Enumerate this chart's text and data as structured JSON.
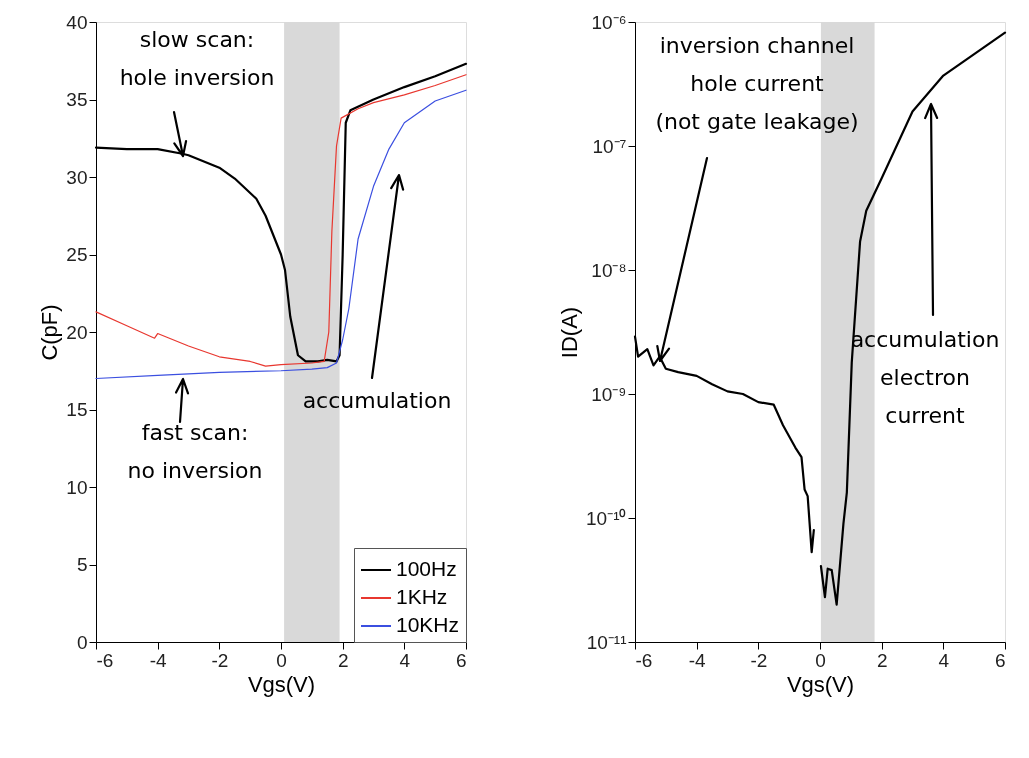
{
  "chart_data": [
    {
      "type": "line",
      "xlabel": "Vgs(V)",
      "ylabel": "C(pF)",
      "xlim": [
        -6,
        6
      ],
      "ylim": [
        0,
        40
      ],
      "xticks": [
        -6,
        -4,
        -2,
        0,
        2,
        4,
        6
      ],
      "yticks": [
        0,
        5,
        10,
        15,
        20,
        25,
        30,
        35,
        40
      ],
      "grid": false,
      "legend": "bottom right",
      "bands": [
        {
          "axis": "x",
          "from": 0.1,
          "to": 1.9,
          "color": "#d9d9d9"
        }
      ],
      "annotations": [
        "slow scan:\nhole inversion",
        "fast scan:\nno inversion",
        "accumulation"
      ],
      "series": [
        {
          "name": "100Hz",
          "color": "#000000",
          "x": [
            -6,
            -5,
            -4,
            -3.2,
            -3,
            -2,
            -1.5,
            -0.8,
            -0.5,
            -0.2,
            0,
            0.13,
            0.3,
            0.55,
            0.8,
            1.2,
            1.5,
            1.8,
            1.9,
            2.0,
            2.1,
            2.25,
            3,
            4,
            5,
            6
          ],
          "values": [
            31.9,
            31.8,
            31.8,
            31.5,
            31.4,
            30.6,
            29.9,
            28.6,
            27.5,
            26,
            25,
            24,
            21,
            18.5,
            18.1,
            18.1,
            18.2,
            18.1,
            18.5,
            25,
            33.5,
            34.3,
            35,
            35.8,
            36.5,
            37.3
          ]
        },
        {
          "name": "1KHz",
          "color": "#e8372f",
          "x": [
            -6,
            -5,
            -4.1,
            -4,
            -3,
            -2,
            -1,
            -0.5,
            0,
            1,
            1.4,
            1.55,
            1.65,
            1.8,
            1.95,
            2.5,
            3,
            4,
            5,
            6
          ],
          "values": [
            21.3,
            20.4,
            19.6,
            19.9,
            19.1,
            18.4,
            18.1,
            17.8,
            17.9,
            18.0,
            18.1,
            20,
            26.5,
            32,
            33.8,
            34.4,
            34.8,
            35.3,
            35.9,
            36.6
          ]
        },
        {
          "name": "10KHz",
          "color": "#3b4fe0",
          "x": [
            -6,
            -4,
            -2,
            0,
            1,
            1.5,
            1.8,
            2,
            2.2,
            2.5,
            3,
            3.5,
            4,
            5,
            6
          ],
          "values": [
            17.0,
            17.2,
            17.4,
            17.5,
            17.6,
            17.7,
            18.0,
            19.5,
            21.5,
            26,
            29.4,
            31.8,
            33.5,
            34.9,
            35.6
          ]
        }
      ]
    },
    {
      "type": "line",
      "xlabel": "Vgs(V)",
      "ylabel": "ID(A)",
      "log": true,
      "xlim": [
        -6,
        6
      ],
      "ylim": [
        1e-11,
        1e-06
      ],
      "xticks": [
        -6,
        -4,
        -2,
        0,
        2,
        4,
        6
      ],
      "yticks": [
        {
          "value": 1e-11,
          "label": "10⁻¹¹"
        },
        {
          "value": 1e-10,
          "label": "10⁻¹⁰"
        },
        {
          "value": 1e-09,
          "label": "10⁻⁹"
        },
        {
          "value": 1e-08,
          "label": "10⁻⁸"
        },
        {
          "value": 1e-07,
          "label": "10⁻⁷"
        },
        {
          "value": 1e-06,
          "label": "10⁻⁶"
        }
      ],
      "grid": false,
      "legend": false,
      "bands": [
        {
          "axis": "x",
          "from": 0.03,
          "to": 1.77,
          "color": "#d9d9d9"
        }
      ],
      "annotations": [
        "inversion channel\nhole current\n(not gate leakage)",
        "accumulation\nelectron\ncurrent"
      ],
      "series": [
        {
          "color": "#000000",
          "x": [
            -6,
            -5.9,
            -5.6,
            -5.4,
            -5.2,
            -5.0,
            -4.6,
            -4.0,
            -3.5,
            -3.0,
            -2.5,
            -2.0,
            -1.5,
            -1.2,
            -0.8,
            -0.6,
            -0.5,
            -0.4,
            -0.27,
            -0.2,
            -0.1,
            0.03,
            0.16,
            0.25,
            0.38,
            0.54,
            0.76,
            0.87,
            1.03,
            1.3,
            1.5,
            2.0,
            3.0,
            4.0,
            5.0,
            6.0
          ],
          "values": [
            2.9e-09,
            2e-09,
            2.3e-09,
            1.7e-09,
            2e-09,
            1.6e-09,
            1.5e-09,
            1.4e-09,
            1.2e-09,
            1.05e-09,
            1e-09,
            8.6e-10,
            8.2e-10,
            5.6e-10,
            3.7e-10,
            3.1e-10,
            1.7e-10,
            1.5e-10,
            5.3e-11,
            8e-11,
            null,
            4.1e-11,
            2.3e-11,
            3.9e-11,
            3.8e-11,
            2e-11,
            9e-11,
            1.6e-10,
            1.8e-09,
            1.7e-08,
            3e-08,
            5.5e-08,
            1.9e-07,
            3.7e-07,
            5.5e-07,
            8.2e-07
          ]
        }
      ]
    }
  ]
}
